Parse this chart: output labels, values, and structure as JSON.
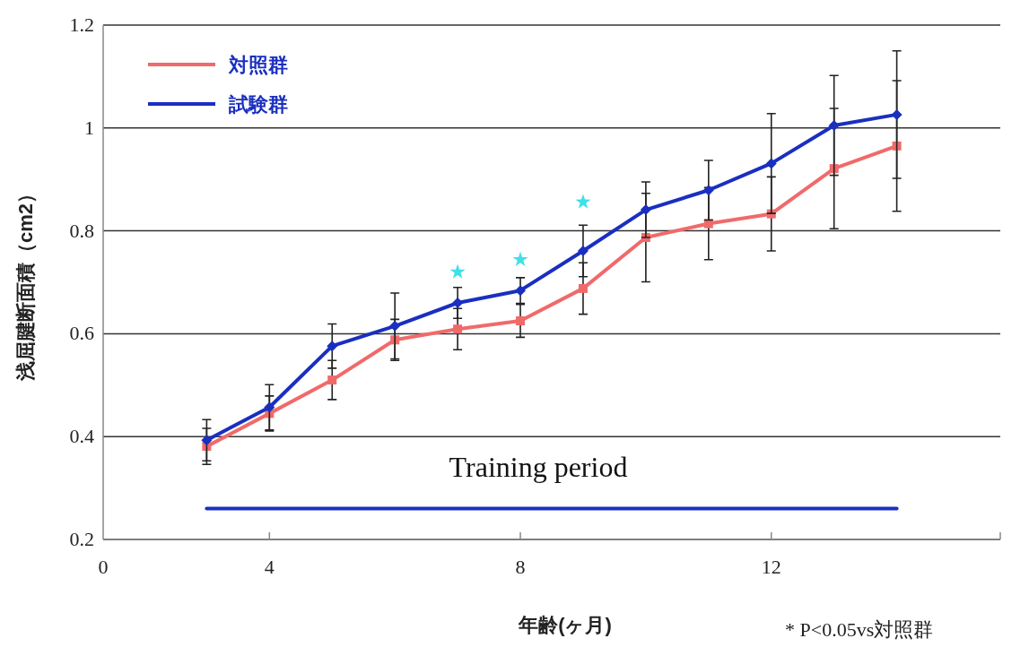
{
  "chart_data": {
    "type": "line",
    "xlabel": "年齢(ヶ月)",
    "ylabel": "浅屈腱断面積（cm2）",
    "categories": [
      null,
      "4",
      null,
      null,
      null,
      "8",
      null,
      null,
      null,
      "12",
      null,
      null
    ],
    "series": [
      {
        "name": "対照群",
        "color": "#f06a6a",
        "marker": "square",
        "values": [
          0.381,
          0.445,
          0.51,
          0.588,
          0.609,
          0.625,
          0.688,
          0.787,
          0.814,
          0.833,
          0.921,
          0.965
        ],
        "errors": [
          0.035,
          0.034,
          0.038,
          0.04,
          0.04,
          0.032,
          0.05,
          0.086,
          0.07,
          0.072,
          0.117,
          0.127
        ]
      },
      {
        "name": "試験群",
        "color": "#1a2fc0",
        "marker": "diamond",
        "values": [
          0.393,
          0.457,
          0.576,
          0.615,
          0.66,
          0.684,
          0.761,
          0.841,
          0.879,
          0.931,
          1.005,
          1.026
        ],
        "errors": [
          0.04,
          0.044,
          0.043,
          0.064,
          0.03,
          0.025,
          0.05,
          0.054,
          0.058,
          0.097,
          0.097,
          0.124
        ]
      },
      {
        "type": "scatter",
        "color": "#40e0e8",
        "marker": "star",
        "values": [
          null,
          null,
          null,
          null,
          0.72,
          0.744,
          0.856,
          null,
          null,
          null,
          null,
          null
        ]
      },
      {
        "type": "line",
        "color": "#1a2fc0",
        "marker": "none",
        "values": [
          0.26,
          0.26,
          0.26,
          0.26,
          0.26,
          0.26,
          0.26,
          0.26,
          0.26,
          0.26,
          0.26,
          0.26
        ]
      }
    ],
    "annotations": [
      "0",
      "Training period",
      "* P<0.05vs対照群"
    ],
    "ylim": [
      0.2,
      1.2
    ],
    "yticks": [
      0.2,
      0.4,
      0.6,
      0.8,
      1,
      1.2
    ],
    "grid": "y",
    "legend": "top left"
  }
}
